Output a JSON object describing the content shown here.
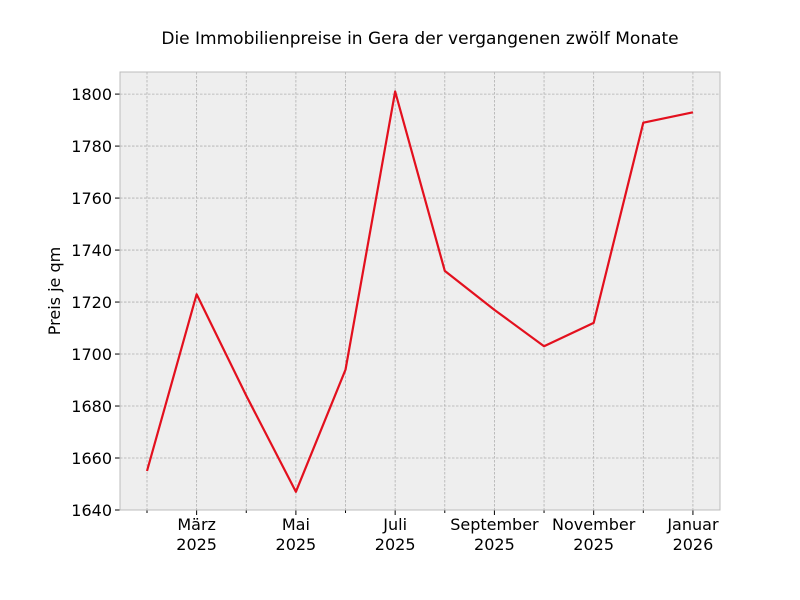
{
  "chart_data": {
    "type": "line",
    "title": "Die Immobilienpreise in Gera der vergangenen zwölf Monate",
    "xlabel": "",
    "ylabel": "Preis je qm",
    "x": [
      "2025-02",
      "2025-03",
      "2025-04",
      "2025-05",
      "2025-06",
      "2025-07",
      "2025-08",
      "2025-09",
      "2025-10",
      "2025-11",
      "2025-12",
      "2026-01"
    ],
    "series": [
      {
        "values": [
          1655,
          1723,
          1684,
          1647,
          1694,
          1801,
          1732,
          1717,
          1703,
          1712,
          1789,
          1793
        ]
      }
    ],
    "x_ticks": [
      {
        "x": "2025-03",
        "line1": "März",
        "line2": "2025"
      },
      {
        "x": "2025-05",
        "line1": "Mai",
        "line2": "2025"
      },
      {
        "x": "2025-07",
        "line1": "Juli",
        "line2": "2025"
      },
      {
        "x": "2025-09",
        "line1": "September",
        "line2": "2025"
      },
      {
        "x": "2025-11",
        "line1": "November",
        "line2": "2025"
      },
      {
        "x": "2026-01",
        "line1": "Januar",
        "line2": "2026"
      }
    ],
    "y_ticks": [
      1640,
      1660,
      1680,
      1700,
      1720,
      1740,
      1760,
      1780,
      1800
    ],
    "ylim": [
      1640,
      1808.5
    ],
    "grid": true,
    "colors": {
      "line": "#e3101e",
      "plot_background": "#eeeeee",
      "grid": "#b0b0b0",
      "frame": "#bcbcbc"
    }
  }
}
